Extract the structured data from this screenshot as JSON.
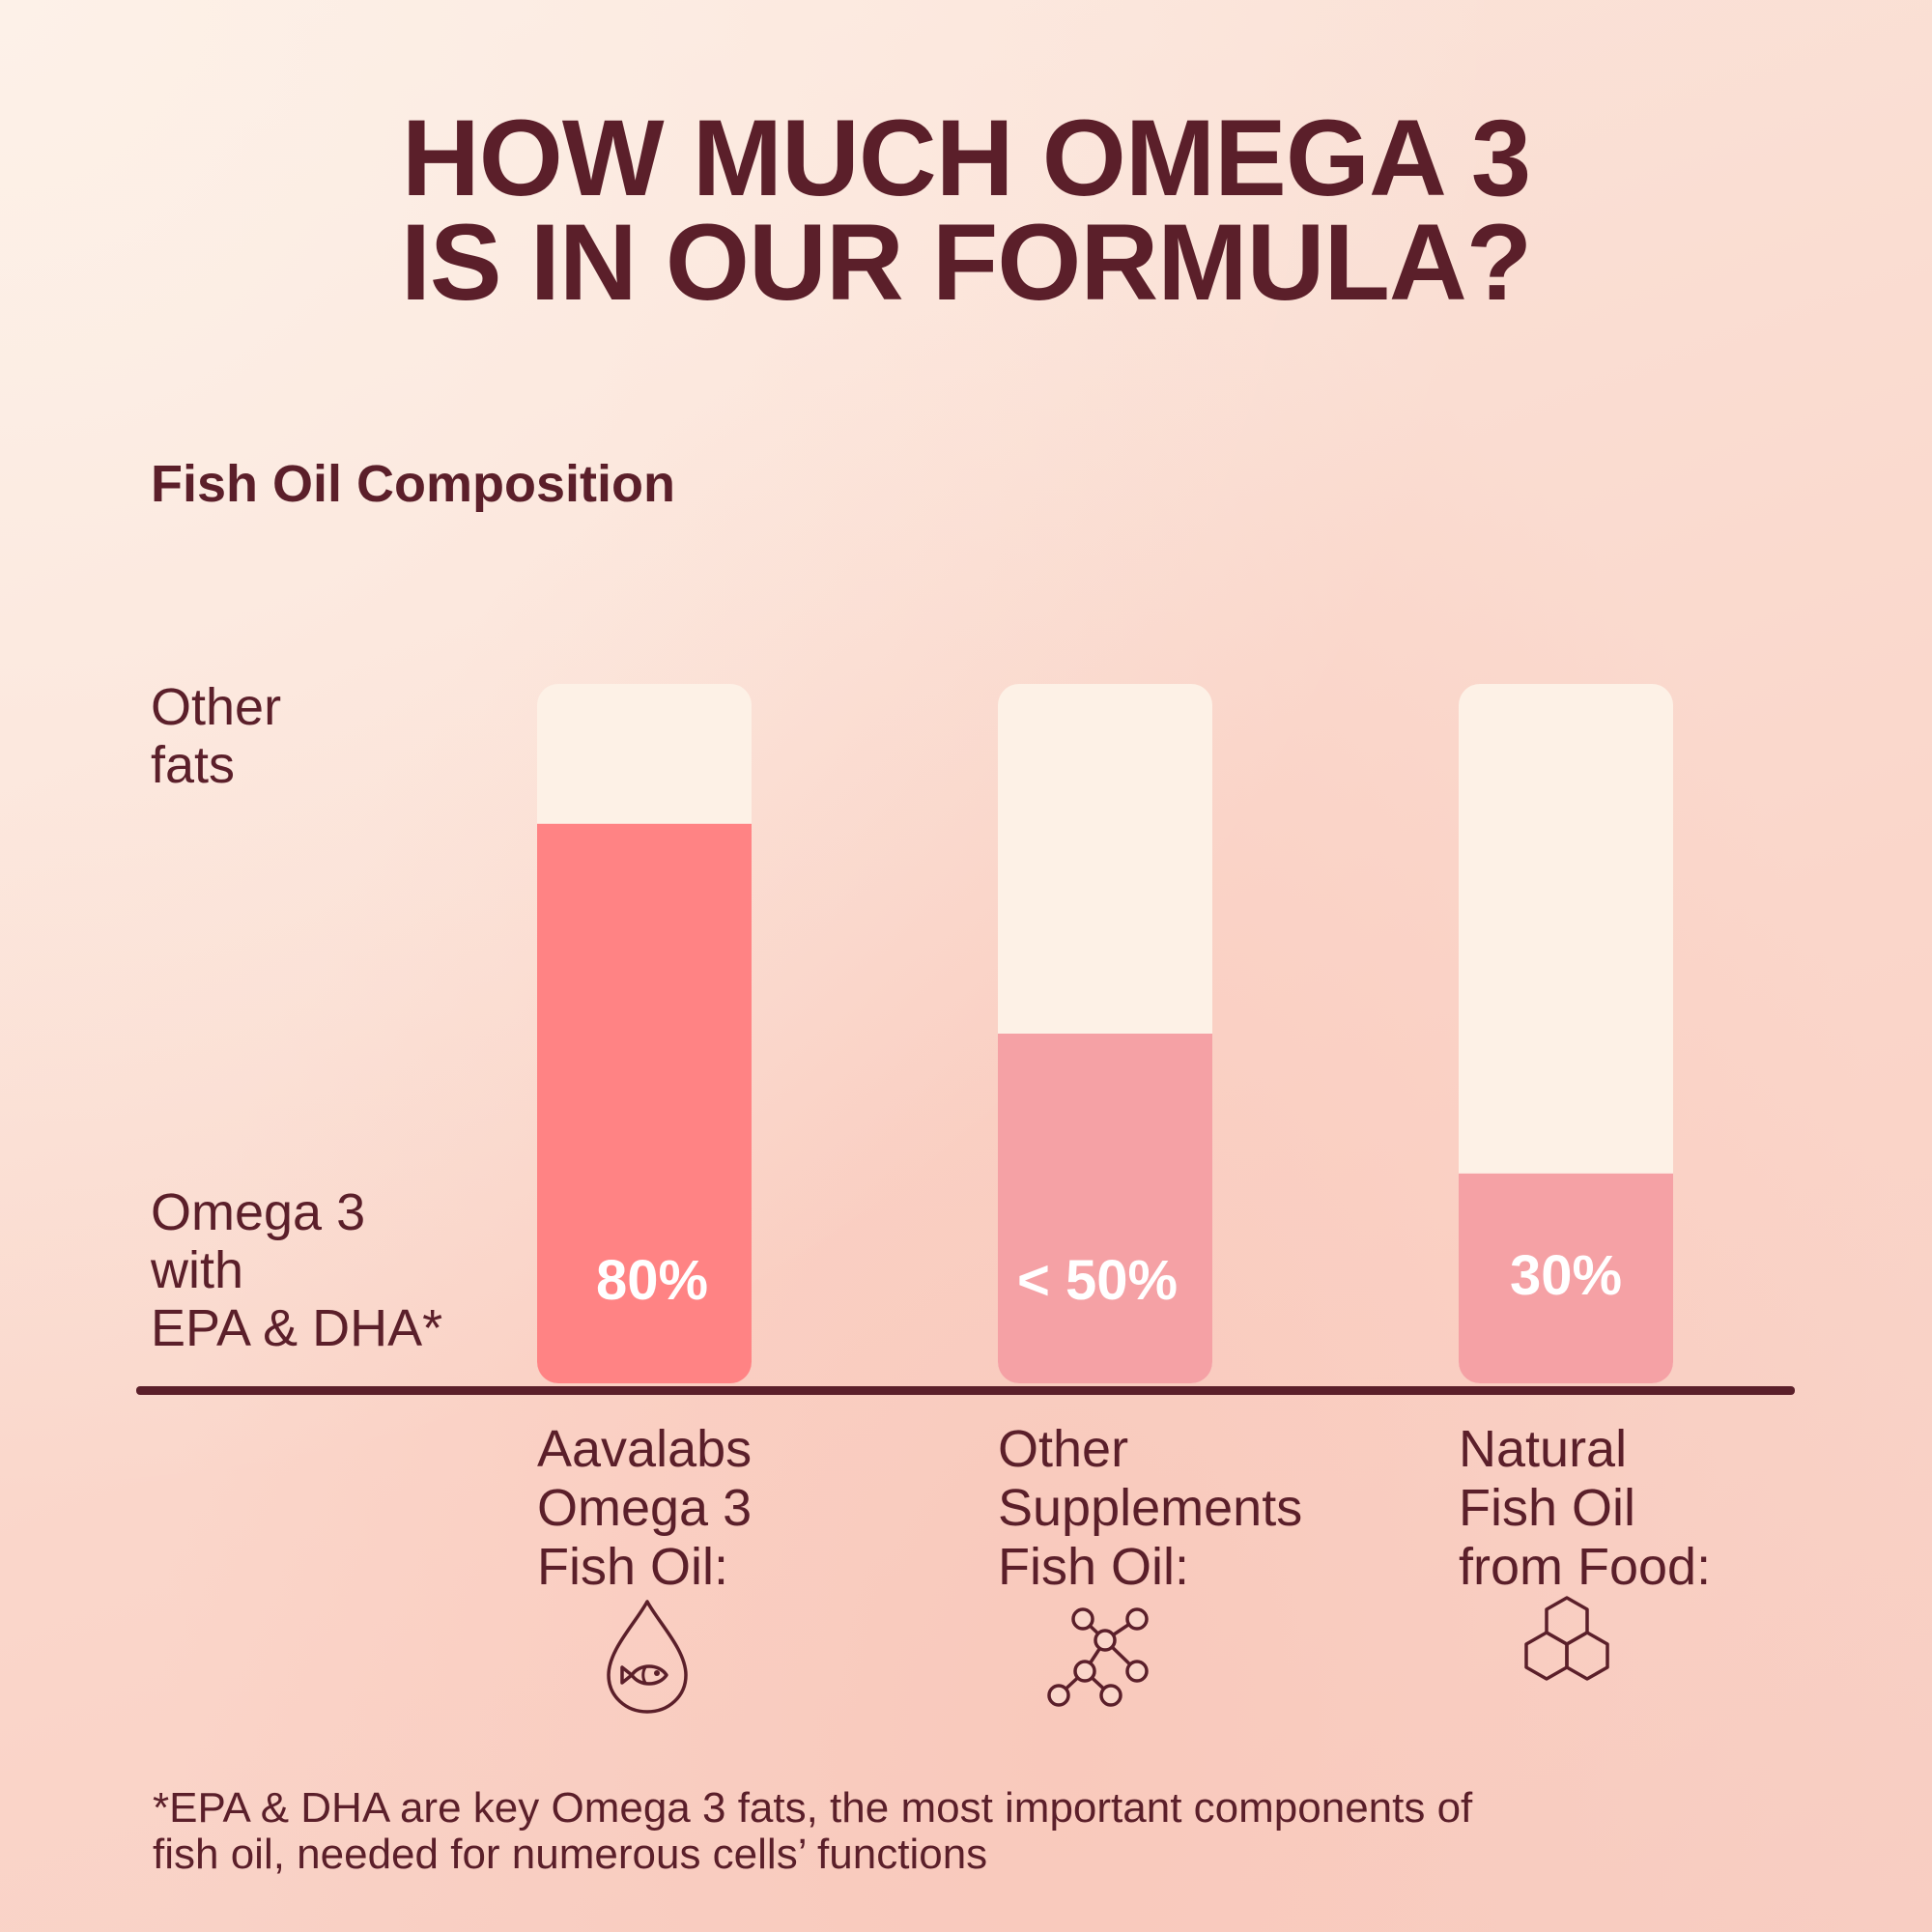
{
  "title": {
    "line1": "HOW MUCH OMEGA 3",
    "line2": "IS IN OUR FORMULA?"
  },
  "colors": {
    "text": "#5b1f2a",
    "empty_fill": "#fdf1e6",
    "highlight_fill": "#ff8384",
    "other_fill": "#f5a1a5",
    "value_label": "#ffffff"
  },
  "chart_data": {
    "type": "bar",
    "stacked": true,
    "title": "Fish Oil Composition",
    "ylim": [
      0,
      100
    ],
    "unit": "%",
    "categories": [
      {
        "lines": [
          "Aavalabs",
          "Omega 3",
          "Fish Oil:"
        ],
        "icon": "fish-drop-icon"
      },
      {
        "lines": [
          "Other",
          "Supplements",
          "Fish Oil:"
        ],
        "icon": "molecule-icon"
      },
      {
        "lines": [
          "Natural",
          "Fish Oil",
          "from Food:"
        ],
        "icon": "hexagon-cluster-icon"
      }
    ],
    "series": [
      {
        "name": "Omega 3 with EPA & DHA*",
        "values": [
          80,
          50,
          30
        ],
        "labels": [
          "80%",
          "< 50%",
          "30%"
        ]
      },
      {
        "name": "Other fats",
        "values": [
          20,
          50,
          70
        ]
      }
    ],
    "legend_labels": {
      "top": [
        "Other",
        "fats"
      ],
      "bottom": [
        "Omega 3",
        "with",
        "EPA & DHA*"
      ]
    }
  },
  "footnote": {
    "line1": "*EPA & DHA are key Omega 3 fats, the most important components of",
    "line2": "fish oil, needed for numerous cells’ functions"
  }
}
